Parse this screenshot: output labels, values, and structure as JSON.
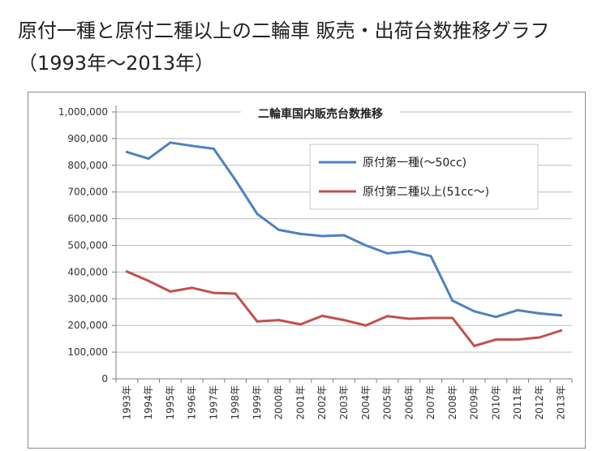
{
  "page": {
    "title": "原付一種と原付二種以上の二輪車 販売・出荷台数推移グラフ（1993年〜2013年）"
  },
  "chart_data": {
    "type": "line",
    "title": "二輪車国内販売台数推移",
    "xlabel": "",
    "ylabel": "",
    "categories": [
      "1993年",
      "1994年",
      "1995年",
      "1996年",
      "1997年",
      "1998年",
      "1999年",
      "2000年",
      "2001年",
      "2002年",
      "2003年",
      "2004年",
      "2005年",
      "2006年",
      "2007年",
      "2008年",
      "2009年",
      "2010年",
      "2011年",
      "2012年",
      "2013年"
    ],
    "ylim": [
      0,
      1000000
    ],
    "yticks": [
      0,
      100000,
      200000,
      300000,
      400000,
      500000,
      600000,
      700000,
      800000,
      900000,
      1000000
    ],
    "ytick_labels": [
      "0",
      "100,000",
      "200,000",
      "300,000",
      "400,000",
      "500,000",
      "600,000",
      "700,000",
      "800,000",
      "900,000",
      "1,000,000"
    ],
    "grid": true,
    "legend_position": "top-right",
    "series": [
      {
        "name": "原付第一種(〜50cc)",
        "color": "#4f81bd",
        "values": [
          850000,
          825000,
          885000,
          873000,
          862000,
          745000,
          618000,
          558000,
          543000,
          535000,
          538000,
          500000,
          470000,
          478000,
          460000,
          293000,
          253000,
          232000,
          257000,
          245000,
          238000
        ]
      },
      {
        "name": "原付第二種以上(51cc〜)",
        "color": "#c0504d",
        "values": [
          402000,
          367000,
          327000,
          341000,
          322000,
          319000,
          215000,
          220000,
          204000,
          236000,
          220000,
          200000,
          235000,
          225000,
          228000,
          228000,
          123000,
          147000,
          147000,
          155000,
          181000
        ]
      }
    ]
  }
}
